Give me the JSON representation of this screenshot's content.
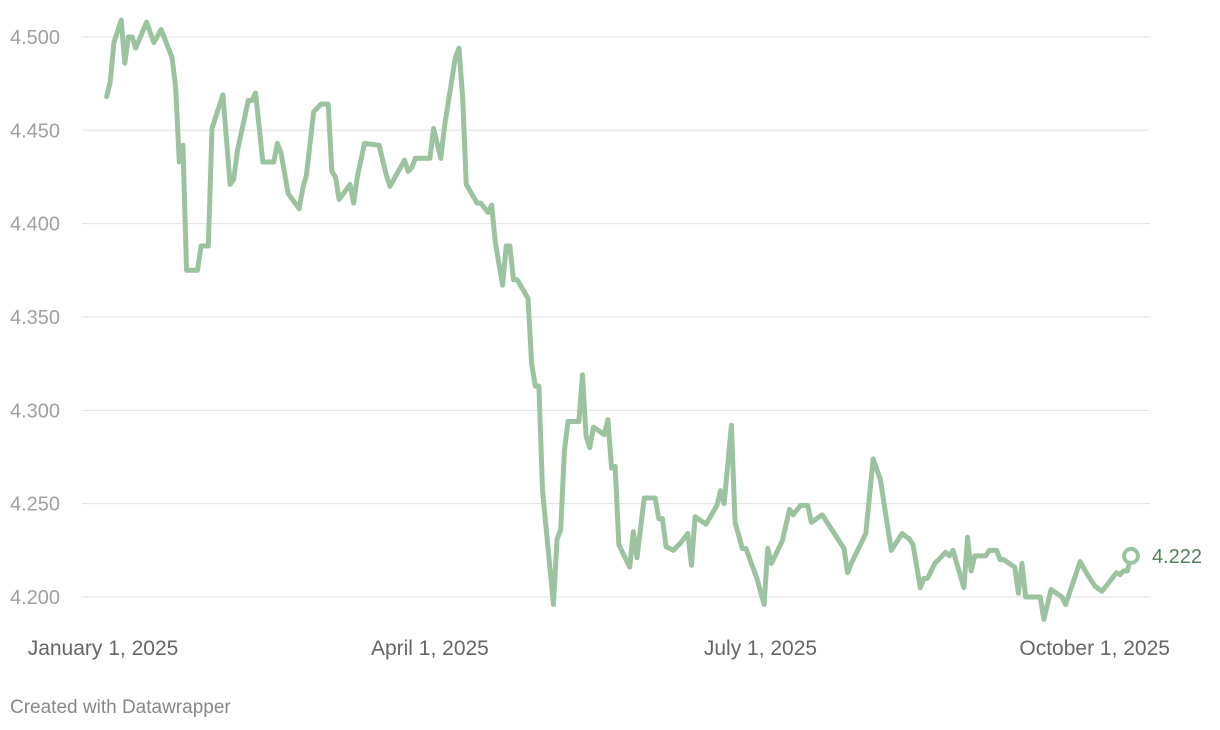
{
  "chart_data": {
    "type": "line",
    "footer": "Created with Datawrapper",
    "xlim": [
      "2025-01-01",
      "2025-10-11"
    ],
    "xticks": [
      {
        "value": "2025-01-01",
        "label": "January 1, 2025"
      },
      {
        "value": "2025-04-01",
        "label": "April 1, 2025"
      },
      {
        "value": "2025-07-01",
        "label": "July 1, 2025"
      },
      {
        "value": "2025-10-01",
        "label": "October 1, 2025"
      }
    ],
    "ylim": [
      4.185,
      4.51
    ],
    "yticks": [
      {
        "value": 4.2,
        "label": "4.200"
      },
      {
        "value": 4.25,
        "label": "4.250"
      },
      {
        "value": 4.3,
        "label": "4.300"
      },
      {
        "value": 4.35,
        "label": "4.350"
      },
      {
        "value": 4.4,
        "label": "4.400"
      },
      {
        "value": 4.45,
        "label": "4.450"
      },
      {
        "value": 4.5,
        "label": "4.500"
      }
    ],
    "grid": true,
    "x": [
      "2025-01-02",
      "2025-01-03",
      "2025-01-04",
      "2025-01-06",
      "2025-01-07",
      "2025-01-08",
      "2025-01-09",
      "2025-01-10",
      "2025-01-13",
      "2025-01-15",
      "2025-01-17",
      "2025-01-20",
      "2025-01-21",
      "2025-01-22",
      "2025-01-23",
      "2025-01-24",
      "2025-01-27",
      "2025-01-28",
      "2025-01-30",
      "2025-01-31",
      "2025-02-03",
      "2025-02-05",
      "2025-02-06",
      "2025-02-07",
      "2025-02-10",
      "2025-02-11",
      "2025-02-12",
      "2025-02-14",
      "2025-02-17",
      "2025-02-18",
      "2025-02-19",
      "2025-02-21",
      "2025-02-24",
      "2025-02-25",
      "2025-02-26",
      "2025-02-28",
      "2025-03-02",
      "2025-03-04",
      "2025-03-05",
      "2025-03-06",
      "2025-03-07",
      "2025-03-10",
      "2025-03-11",
      "2025-03-12",
      "2025-03-14",
      "2025-03-18",
      "2025-03-20",
      "2025-03-21",
      "2025-03-25",
      "2025-03-26",
      "2025-03-27",
      "2025-03-28",
      "2025-04-01",
      "2025-04-02",
      "2025-04-04",
      "2025-04-05",
      "2025-04-08",
      "2025-04-09",
      "2025-04-10",
      "2025-04-11",
      "2025-04-14",
      "2025-04-15",
      "2025-04-17",
      "2025-04-18",
      "2025-04-19",
      "2025-04-21",
      "2025-04-22",
      "2025-04-23",
      "2025-04-24",
      "2025-04-25",
      "2025-04-28",
      "2025-04-29",
      "2025-04-30",
      "2025-05-01",
      "2025-05-02",
      "2025-05-05",
      "2025-05-06",
      "2025-05-07",
      "2025-05-08",
      "2025-05-09",
      "2025-05-12",
      "2025-05-13",
      "2025-05-14",
      "2025-05-15",
      "2025-05-16",
      "2025-05-19",
      "2025-05-20",
      "2025-05-21",
      "2025-05-22",
      "2025-05-23",
      "2025-05-26",
      "2025-05-27",
      "2025-05-28",
      "2025-05-30",
      "2025-06-02",
      "2025-06-03",
      "2025-06-04",
      "2025-06-05",
      "2025-06-07",
      "2025-06-09",
      "2025-06-11",
      "2025-06-12",
      "2025-06-13",
      "2025-06-16",
      "2025-06-19",
      "2025-06-20",
      "2025-06-21",
      "2025-06-23",
      "2025-06-24",
      "2025-06-26",
      "2025-06-27",
      "2025-06-30",
      "2025-07-02",
      "2025-07-03",
      "2025-07-04",
      "2025-07-07",
      "2025-07-09",
      "2025-07-10",
      "2025-07-12",
      "2025-07-14",
      "2025-07-15",
      "2025-07-18",
      "2025-07-24",
      "2025-07-25",
      "2025-07-26",
      "2025-07-30",
      "2025-08-01",
      "2025-08-03",
      "2025-08-06",
      "2025-08-07",
      "2025-08-09",
      "2025-08-11",
      "2025-08-12",
      "2025-08-14",
      "2025-08-15",
      "2025-08-16",
      "2025-08-18",
      "2025-08-21",
      "2025-08-22",
      "2025-08-23",
      "2025-08-26",
      "2025-08-27",
      "2025-08-28",
      "2025-08-29",
      "2025-09-01",
      "2025-09-02",
      "2025-09-04",
      "2025-09-05",
      "2025-09-06",
      "2025-09-09",
      "2025-09-10",
      "2025-09-11",
      "2025-09-12",
      "2025-09-16",
      "2025-09-17",
      "2025-09-19",
      "2025-09-22",
      "2025-09-23",
      "2025-09-27",
      "2025-09-29",
      "2025-10-01",
      "2025-10-03",
      "2025-10-07",
      "2025-10-08",
      "2025-10-09",
      "2025-10-10",
      "2025-10-11"
    ],
    "series": [
      {
        "color": "#9cc3a0",
        "values": [
          4.468,
          4.476,
          4.497,
          4.509,
          4.486,
          4.5,
          4.5,
          4.494,
          4.508,
          4.497,
          4.504,
          4.489,
          4.473,
          4.433,
          4.442,
          4.375,
          4.375,
          4.388,
          4.388,
          4.451,
          4.469,
          4.421,
          4.424,
          4.439,
          4.466,
          4.466,
          4.47,
          4.433,
          4.433,
          4.443,
          4.438,
          4.416,
          4.408,
          4.419,
          4.426,
          4.46,
          4.464,
          4.464,
          4.428,
          4.425,
          4.413,
          4.421,
          4.411,
          4.425,
          4.443,
          4.442,
          4.426,
          4.42,
          4.434,
          4.428,
          4.43,
          4.435,
          4.435,
          4.451,
          4.435,
          4.452,
          4.489,
          4.494,
          4.468,
          4.421,
          4.411,
          4.411,
          4.406,
          4.41,
          4.39,
          4.367,
          4.388,
          4.388,
          4.37,
          4.37,
          4.36,
          4.325,
          4.313,
          4.313,
          4.257,
          4.196,
          4.231,
          4.236,
          4.278,
          4.294,
          4.294,
          4.319,
          4.286,
          4.28,
          4.291,
          4.287,
          4.295,
          4.269,
          4.27,
          4.228,
          4.216,
          4.235,
          4.221,
          4.253,
          4.253,
          4.242,
          4.242,
          4.227,
          4.225,
          4.229,
          4.234,
          4.217,
          4.243,
          4.239,
          4.249,
          4.257,
          4.25,
          4.292,
          4.24,
          4.226,
          4.226,
          4.21,
          4.196,
          4.226,
          4.218,
          4.23,
          4.247,
          4.244,
          4.249,
          4.249,
          4.24,
          4.244,
          4.226,
          4.213,
          4.218,
          4.234,
          4.274,
          4.263,
          4.225,
          4.228,
          4.234,
          4.231,
          4.228,
          4.205,
          4.21,
          4.21,
          4.218,
          4.224,
          4.222,
          4.225,
          4.205,
          4.232,
          4.214,
          4.222,
          4.222,
          4.225,
          4.225,
          4.22,
          4.22,
          4.216,
          4.202,
          4.218,
          4.2,
          4.2,
          4.188,
          4.204,
          4.2,
          4.196,
          4.219,
          4.212,
          4.206,
          4.203,
          4.213,
          4.212,
          4.214,
          4.214,
          4.222
        ]
      }
    ]
  }
}
